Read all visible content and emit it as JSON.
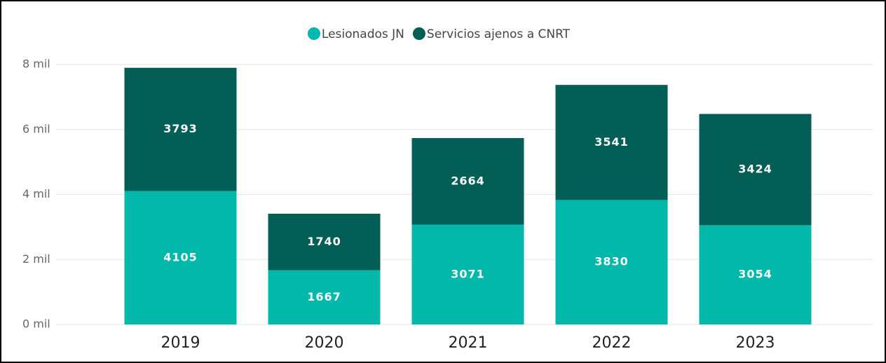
{
  "chart_data": {
    "type": "stacked_bar",
    "categories": [
      "2019",
      "2020",
      "2021",
      "2022",
      "2023"
    ],
    "series": [
      {
        "name": "Lesionados JN",
        "color": "#01b8aa",
        "values": [
          4105,
          1667,
          3071,
          3830,
          3054
        ]
      },
      {
        "name": "Servicios ajenos a CNRT",
        "color": "#035f56",
        "values": [
          3793,
          1740,
          2664,
          3541,
          3424
        ]
      }
    ],
    "ylim": [
      0,
      8000
    ],
    "yticks": [
      {
        "value": 0,
        "label": "0 mil"
      },
      {
        "value": 2000,
        "label": "2 mil"
      },
      {
        "value": 4000,
        "label": "4 mil"
      },
      {
        "value": 6000,
        "label": "6 mil"
      },
      {
        "value": 8000,
        "label": "8 mil"
      }
    ],
    "grid": true,
    "legend": "top"
  }
}
